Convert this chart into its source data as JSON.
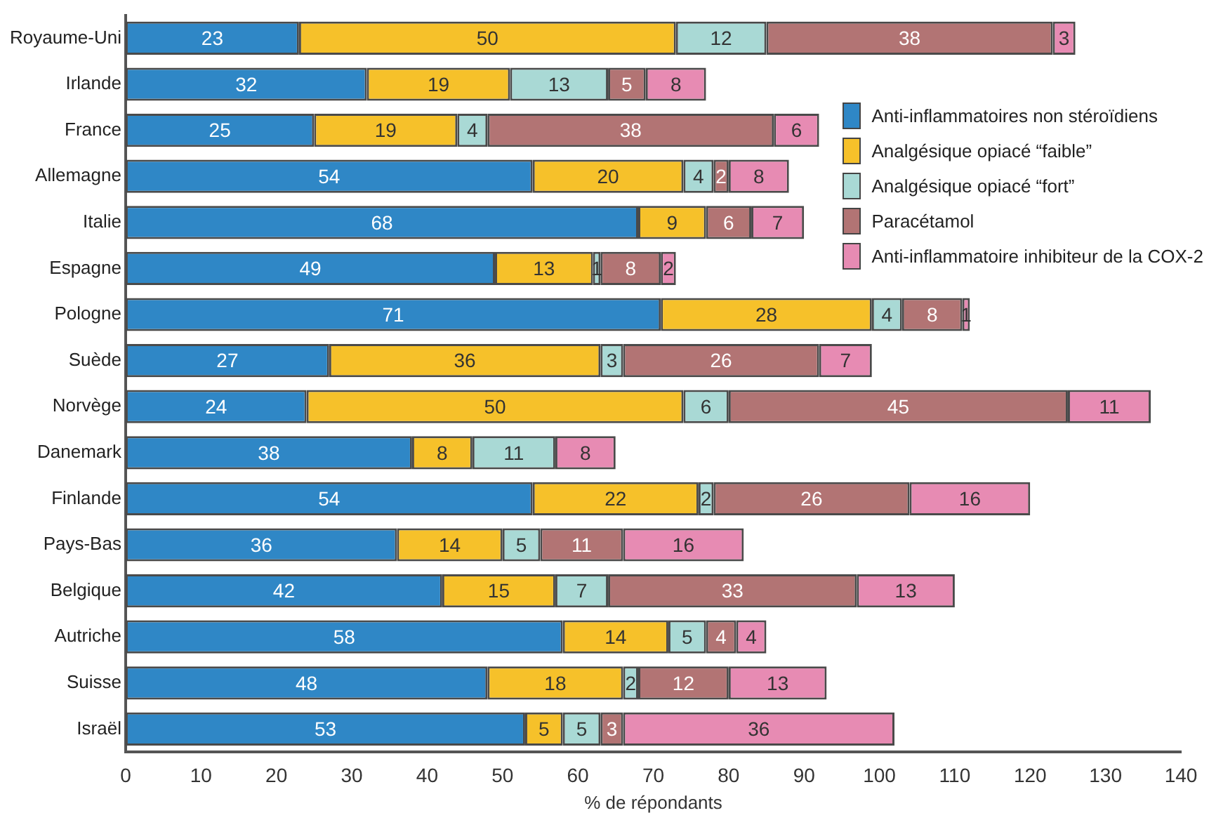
{
  "chart_data": {
    "type": "bar",
    "orientation": "horizontal",
    "stacked": true,
    "data_labels": true,
    "grid": false,
    "legend": "top right",
    "xlabel": "% de répondants",
    "categories": [
      "Royaume-Uni",
      "Irlande",
      "France",
      "Allemagne",
      "Italie",
      "Espagne",
      "Pologne",
      "Suède",
      "Norvège",
      "Danemark",
      "Finlande",
      "Pays-Bas",
      "Belgique",
      "Autriche",
      "Suisse",
      "Israël"
    ],
    "xlim": [
      0,
      140
    ],
    "xticks": [
      0,
      10,
      20,
      30,
      40,
      50,
      60,
      70,
      80,
      90,
      100,
      110,
      120,
      130,
      140
    ],
    "series": [
      {
        "name": "Anti-inflammatoires non stéroïdiens",
        "color": "#2f87c6",
        "values": [
          23,
          32,
          25,
          54,
          68,
          49,
          71,
          27,
          24,
          38,
          54,
          36,
          42,
          58,
          48,
          53
        ]
      },
      {
        "name": "Analgésique opiacé “faible”",
        "color": "#f6c12a",
        "values": [
          50,
          19,
          19,
          20,
          9,
          13,
          28,
          36,
          50,
          8,
          22,
          14,
          15,
          14,
          18,
          5
        ]
      },
      {
        "name": "Analgésique opiacé “fort”",
        "color": "#a9d9d5",
        "values": [
          12,
          13,
          4,
          4,
          null,
          1,
          4,
          3,
          6,
          11,
          2,
          5,
          7,
          5,
          2,
          5
        ]
      },
      {
        "name": "Paracétamol",
        "color": "#b27474",
        "values": [
          38,
          5,
          38,
          2,
          6,
          8,
          8,
          26,
          45,
          null,
          26,
          11,
          33,
          4,
          12,
          3
        ]
      },
      {
        "name": "Anti-inflammatoire inhibiteur de la COX-2",
        "color": "#e78bb3",
        "values": [
          3,
          8,
          6,
          8,
          7,
          2,
          1,
          7,
          11,
          8,
          16,
          16,
          13,
          4,
          13,
          36
        ]
      }
    ]
  }
}
